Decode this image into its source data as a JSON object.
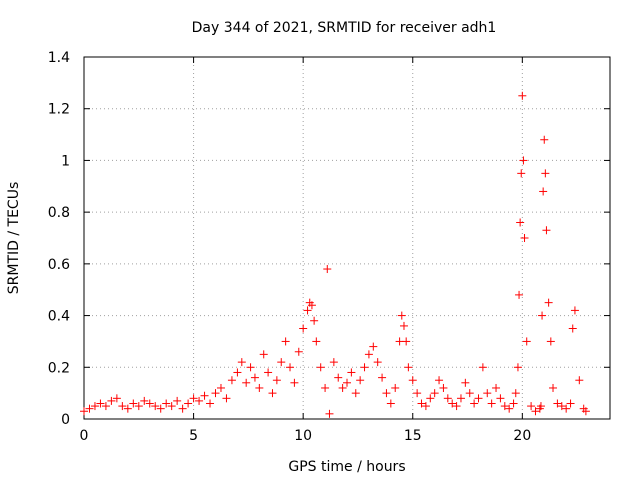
{
  "chart_data": {
    "type": "scatter",
    "title": "Day 344 of 2021, SRMTID for receiver adh1",
    "xlabel": "GPS time / hours",
    "ylabel": "SRMTID / TECUs",
    "xlim": [
      0,
      24
    ],
    "ylim": [
      0,
      1.4
    ],
    "xticks": [
      0,
      5,
      10,
      15,
      20
    ],
    "xtick_labels": [
      "0",
      "5",
      "10",
      "15",
      "20"
    ],
    "yticks": [
      0,
      0.2,
      0.4,
      0.6,
      0.8,
      1.0,
      1.2,
      1.4
    ],
    "ytick_labels": [
      "0",
      "0.2",
      "0.4",
      "0.6",
      "0.8",
      "1",
      "1.2",
      "1.4"
    ],
    "grid": true,
    "marker": "+",
    "series": [
      {
        "name": "SRMTID",
        "color": "#ff0000",
        "x": [
          0.0,
          0.25,
          0.5,
          0.75,
          1.0,
          1.25,
          1.5,
          1.75,
          2.0,
          2.25,
          2.5,
          2.75,
          3.0,
          3.25,
          3.5,
          3.75,
          4.0,
          4.25,
          4.5,
          4.75,
          5.0,
          5.25,
          5.5,
          5.75,
          6.0,
          6.25,
          6.5,
          6.75,
          7.0,
          7.2,
          7.4,
          7.6,
          7.8,
          8.0,
          8.2,
          8.4,
          8.6,
          8.8,
          9.0,
          9.2,
          9.4,
          9.6,
          9.8,
          10.0,
          10.2,
          10.3,
          10.4,
          10.5,
          10.6,
          10.8,
          11.0,
          11.1,
          11.2,
          11.4,
          11.6,
          11.8,
          12.0,
          12.2,
          12.4,
          12.6,
          12.8,
          13.0,
          13.2,
          13.4,
          13.6,
          13.8,
          14.0,
          14.2,
          14.4,
          14.5,
          14.6,
          14.7,
          14.8,
          15.0,
          15.2,
          15.4,
          15.6,
          15.8,
          16.0,
          16.2,
          16.4,
          16.6,
          16.8,
          17.0,
          17.2,
          17.4,
          17.6,
          17.8,
          18.0,
          18.2,
          18.4,
          18.6,
          18.8,
          19.0,
          19.2,
          19.4,
          19.6,
          19.7,
          19.8,
          19.85,
          19.9,
          19.95,
          20.0,
          20.05,
          20.1,
          20.2,
          20.4,
          20.6,
          20.8,
          20.85,
          20.9,
          20.95,
          21.0,
          21.05,
          21.1,
          21.2,
          21.3,
          21.4,
          21.6,
          21.8,
          22.0,
          22.2,
          22.3,
          22.4,
          22.6,
          22.8,
          22.9
        ],
        "y": [
          0.03,
          0.04,
          0.05,
          0.06,
          0.05,
          0.07,
          0.08,
          0.05,
          0.04,
          0.06,
          0.05,
          0.07,
          0.06,
          0.05,
          0.04,
          0.06,
          0.05,
          0.07,
          0.04,
          0.06,
          0.08,
          0.07,
          0.09,
          0.06,
          0.1,
          0.12,
          0.08,
          0.15,
          0.18,
          0.22,
          0.14,
          0.2,
          0.16,
          0.12,
          0.25,
          0.18,
          0.1,
          0.15,
          0.22,
          0.3,
          0.2,
          0.14,
          0.26,
          0.35,
          0.42,
          0.45,
          0.44,
          0.38,
          0.3,
          0.2,
          0.12,
          0.58,
          0.02,
          0.22,
          0.16,
          0.12,
          0.14,
          0.18,
          0.1,
          0.15,
          0.2,
          0.25,
          0.28,
          0.22,
          0.16,
          0.1,
          0.06,
          0.12,
          0.3,
          0.4,
          0.36,
          0.3,
          0.2,
          0.15,
          0.1,
          0.06,
          0.05,
          0.08,
          0.1,
          0.15,
          0.12,
          0.08,
          0.06,
          0.05,
          0.08,
          0.14,
          0.1,
          0.06,
          0.08,
          0.2,
          0.1,
          0.06,
          0.12,
          0.08,
          0.05,
          0.04,
          0.06,
          0.1,
          0.2,
          0.48,
          0.76,
          0.95,
          1.25,
          1.0,
          0.7,
          0.3,
          0.05,
          0.03,
          0.04,
          0.05,
          0.4,
          0.88,
          1.08,
          0.95,
          0.73,
          0.45,
          0.3,
          0.12,
          0.06,
          0.05,
          0.04,
          0.06,
          0.35,
          0.42,
          0.15,
          0.04,
          0.03
        ]
      }
    ]
  }
}
